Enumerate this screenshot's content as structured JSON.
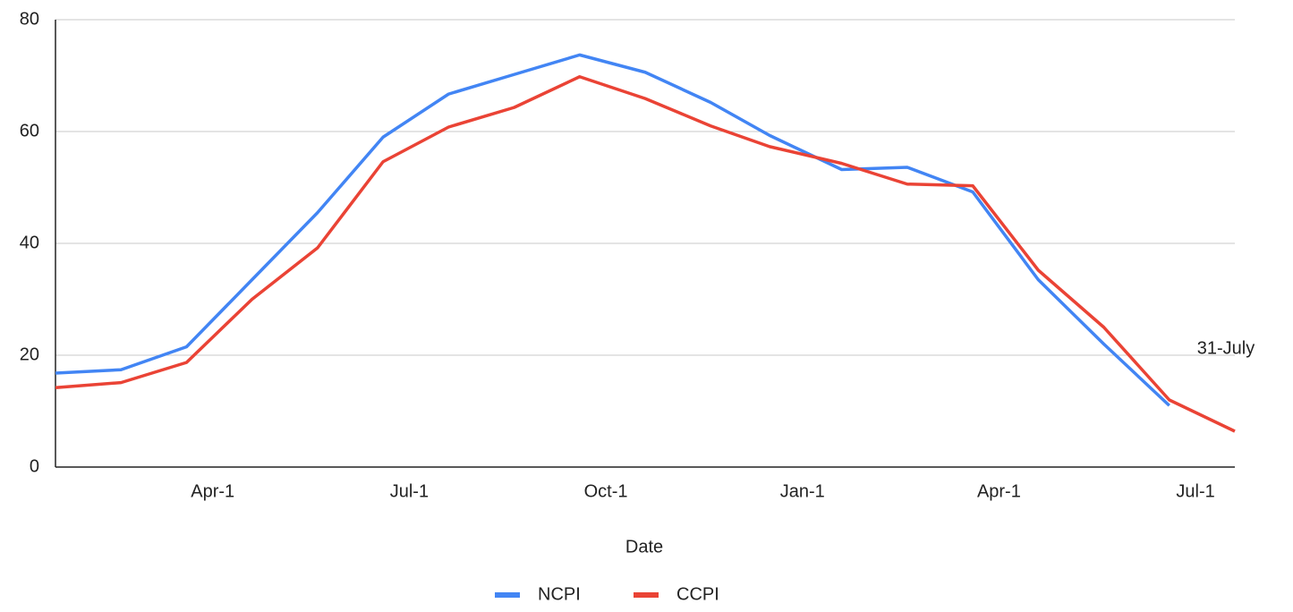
{
  "chart_data": {
    "type": "line",
    "x_label": "Date",
    "annotation": "31-July",
    "x": [
      0.6,
      1.6,
      2.6,
      3.6,
      4.6,
      5.6,
      6.6,
      7.6,
      8.6,
      9.6,
      10.6,
      11.5,
      12.6,
      13.6,
      14.6,
      15.6,
      16.6,
      17.6,
      18.6
    ],
    "series": [
      {
        "name": "NCPI",
        "color": "#4285f4",
        "values": [
          16.8,
          17.4,
          21.5,
          33.5,
          45.5,
          59,
          66.7,
          70.2,
          73.7,
          70.6,
          65.2,
          59.3,
          53.2,
          53.6,
          49.2,
          33.5,
          22,
          11,
          null
        ]
      },
      {
        "name": "CCPI",
        "color": "#ea4335",
        "values": [
          14.2,
          15.1,
          18.7,
          30,
          39.2,
          54.6,
          60.8,
          64.3,
          69.8,
          65.9,
          61,
          57.3,
          54.3,
          50.6,
          50.3,
          35.2,
          25,
          12,
          6.4
        ]
      }
    ],
    "xlim": [
      0.6,
      18.6
    ],
    "xticks": [
      {
        "value": 3,
        "label": "Apr-1"
      },
      {
        "value": 6,
        "label": "Jul-1"
      },
      {
        "value": 9,
        "label": "Oct-1"
      },
      {
        "value": 12,
        "label": "Jan-1"
      },
      {
        "value": 15,
        "label": "Apr-1"
      },
      {
        "value": 18,
        "label": "Jul-1"
      }
    ],
    "ylim": [
      0,
      80
    ],
    "yticks": [
      0,
      20,
      40,
      60,
      80
    ],
    "grid": true,
    "legend": "bottom"
  }
}
